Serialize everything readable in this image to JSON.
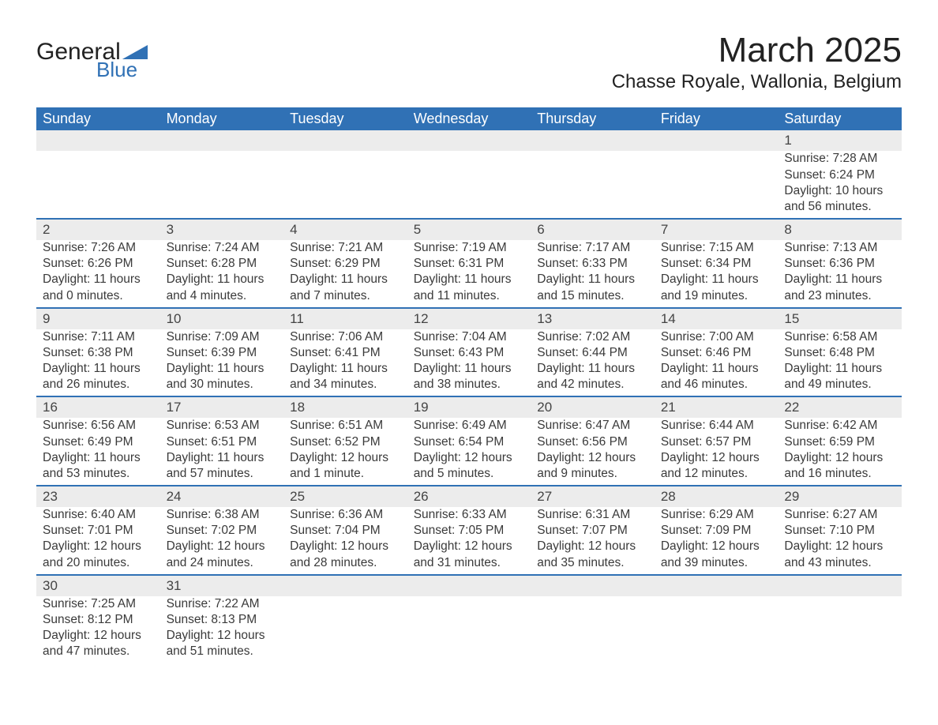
{
  "brand": {
    "line1": "General",
    "line2": "Blue",
    "logo_color": "#3071b5"
  },
  "title": "March 2025",
  "location": "Chasse Royale, Wallonia, Belgium",
  "colors": {
    "header_bg": "#3071b5",
    "header_text": "#ffffff",
    "day_bg": "#ececec",
    "text": "#3a3a3a",
    "rule": "#3071b5"
  },
  "typography": {
    "title_fontsize_pt": 33,
    "location_fontsize_pt": 18,
    "header_fontsize_pt": 13,
    "cell_fontsize_pt": 12,
    "font_family": "Arial"
  },
  "weekdays": [
    "Sunday",
    "Monday",
    "Tuesday",
    "Wednesday",
    "Thursday",
    "Friday",
    "Saturday"
  ],
  "weeks": [
    [
      null,
      null,
      null,
      null,
      null,
      null,
      {
        "day": "1",
        "sunrise": "Sunrise: 7:28 AM",
        "sunset": "Sunset: 6:24 PM",
        "dl1": "Daylight: 10 hours",
        "dl2": "and 56 minutes."
      }
    ],
    [
      {
        "day": "2",
        "sunrise": "Sunrise: 7:26 AM",
        "sunset": "Sunset: 6:26 PM",
        "dl1": "Daylight: 11 hours",
        "dl2": "and 0 minutes."
      },
      {
        "day": "3",
        "sunrise": "Sunrise: 7:24 AM",
        "sunset": "Sunset: 6:28 PM",
        "dl1": "Daylight: 11 hours",
        "dl2": "and 4 minutes."
      },
      {
        "day": "4",
        "sunrise": "Sunrise: 7:21 AM",
        "sunset": "Sunset: 6:29 PM",
        "dl1": "Daylight: 11 hours",
        "dl2": "and 7 minutes."
      },
      {
        "day": "5",
        "sunrise": "Sunrise: 7:19 AM",
        "sunset": "Sunset: 6:31 PM",
        "dl1": "Daylight: 11 hours",
        "dl2": "and 11 minutes."
      },
      {
        "day": "6",
        "sunrise": "Sunrise: 7:17 AM",
        "sunset": "Sunset: 6:33 PM",
        "dl1": "Daylight: 11 hours",
        "dl2": "and 15 minutes."
      },
      {
        "day": "7",
        "sunrise": "Sunrise: 7:15 AM",
        "sunset": "Sunset: 6:34 PM",
        "dl1": "Daylight: 11 hours",
        "dl2": "and 19 minutes."
      },
      {
        "day": "8",
        "sunrise": "Sunrise: 7:13 AM",
        "sunset": "Sunset: 6:36 PM",
        "dl1": "Daylight: 11 hours",
        "dl2": "and 23 minutes."
      }
    ],
    [
      {
        "day": "9",
        "sunrise": "Sunrise: 7:11 AM",
        "sunset": "Sunset: 6:38 PM",
        "dl1": "Daylight: 11 hours",
        "dl2": "and 26 minutes."
      },
      {
        "day": "10",
        "sunrise": "Sunrise: 7:09 AM",
        "sunset": "Sunset: 6:39 PM",
        "dl1": "Daylight: 11 hours",
        "dl2": "and 30 minutes."
      },
      {
        "day": "11",
        "sunrise": "Sunrise: 7:06 AM",
        "sunset": "Sunset: 6:41 PM",
        "dl1": "Daylight: 11 hours",
        "dl2": "and 34 minutes."
      },
      {
        "day": "12",
        "sunrise": "Sunrise: 7:04 AM",
        "sunset": "Sunset: 6:43 PM",
        "dl1": "Daylight: 11 hours",
        "dl2": "and 38 minutes."
      },
      {
        "day": "13",
        "sunrise": "Sunrise: 7:02 AM",
        "sunset": "Sunset: 6:44 PM",
        "dl1": "Daylight: 11 hours",
        "dl2": "and 42 minutes."
      },
      {
        "day": "14",
        "sunrise": "Sunrise: 7:00 AM",
        "sunset": "Sunset: 6:46 PM",
        "dl1": "Daylight: 11 hours",
        "dl2": "and 46 minutes."
      },
      {
        "day": "15",
        "sunrise": "Sunrise: 6:58 AM",
        "sunset": "Sunset: 6:48 PM",
        "dl1": "Daylight: 11 hours",
        "dl2": "and 49 minutes."
      }
    ],
    [
      {
        "day": "16",
        "sunrise": "Sunrise: 6:56 AM",
        "sunset": "Sunset: 6:49 PM",
        "dl1": "Daylight: 11 hours",
        "dl2": "and 53 minutes."
      },
      {
        "day": "17",
        "sunrise": "Sunrise: 6:53 AM",
        "sunset": "Sunset: 6:51 PM",
        "dl1": "Daylight: 11 hours",
        "dl2": "and 57 minutes."
      },
      {
        "day": "18",
        "sunrise": "Sunrise: 6:51 AM",
        "sunset": "Sunset: 6:52 PM",
        "dl1": "Daylight: 12 hours",
        "dl2": "and 1 minute."
      },
      {
        "day": "19",
        "sunrise": "Sunrise: 6:49 AM",
        "sunset": "Sunset: 6:54 PM",
        "dl1": "Daylight: 12 hours",
        "dl2": "and 5 minutes."
      },
      {
        "day": "20",
        "sunrise": "Sunrise: 6:47 AM",
        "sunset": "Sunset: 6:56 PM",
        "dl1": "Daylight: 12 hours",
        "dl2": "and 9 minutes."
      },
      {
        "day": "21",
        "sunrise": "Sunrise: 6:44 AM",
        "sunset": "Sunset: 6:57 PM",
        "dl1": "Daylight: 12 hours",
        "dl2": "and 12 minutes."
      },
      {
        "day": "22",
        "sunrise": "Sunrise: 6:42 AM",
        "sunset": "Sunset: 6:59 PM",
        "dl1": "Daylight: 12 hours",
        "dl2": "and 16 minutes."
      }
    ],
    [
      {
        "day": "23",
        "sunrise": "Sunrise: 6:40 AM",
        "sunset": "Sunset: 7:01 PM",
        "dl1": "Daylight: 12 hours",
        "dl2": "and 20 minutes."
      },
      {
        "day": "24",
        "sunrise": "Sunrise: 6:38 AM",
        "sunset": "Sunset: 7:02 PM",
        "dl1": "Daylight: 12 hours",
        "dl2": "and 24 minutes."
      },
      {
        "day": "25",
        "sunrise": "Sunrise: 6:36 AM",
        "sunset": "Sunset: 7:04 PM",
        "dl1": "Daylight: 12 hours",
        "dl2": "and 28 minutes."
      },
      {
        "day": "26",
        "sunrise": "Sunrise: 6:33 AM",
        "sunset": "Sunset: 7:05 PM",
        "dl1": "Daylight: 12 hours",
        "dl2": "and 31 minutes."
      },
      {
        "day": "27",
        "sunrise": "Sunrise: 6:31 AM",
        "sunset": "Sunset: 7:07 PM",
        "dl1": "Daylight: 12 hours",
        "dl2": "and 35 minutes."
      },
      {
        "day": "28",
        "sunrise": "Sunrise: 6:29 AM",
        "sunset": "Sunset: 7:09 PM",
        "dl1": "Daylight: 12 hours",
        "dl2": "and 39 minutes."
      },
      {
        "day": "29",
        "sunrise": "Sunrise: 6:27 AM",
        "sunset": "Sunset: 7:10 PM",
        "dl1": "Daylight: 12 hours",
        "dl2": "and 43 minutes."
      }
    ],
    [
      {
        "day": "30",
        "sunrise": "Sunrise: 7:25 AM",
        "sunset": "Sunset: 8:12 PM",
        "dl1": "Daylight: 12 hours",
        "dl2": "and 47 minutes."
      },
      {
        "day": "31",
        "sunrise": "Sunrise: 7:22 AM",
        "sunset": "Sunset: 8:13 PM",
        "dl1": "Daylight: 12 hours",
        "dl2": "and 51 minutes."
      },
      null,
      null,
      null,
      null,
      null
    ]
  ]
}
